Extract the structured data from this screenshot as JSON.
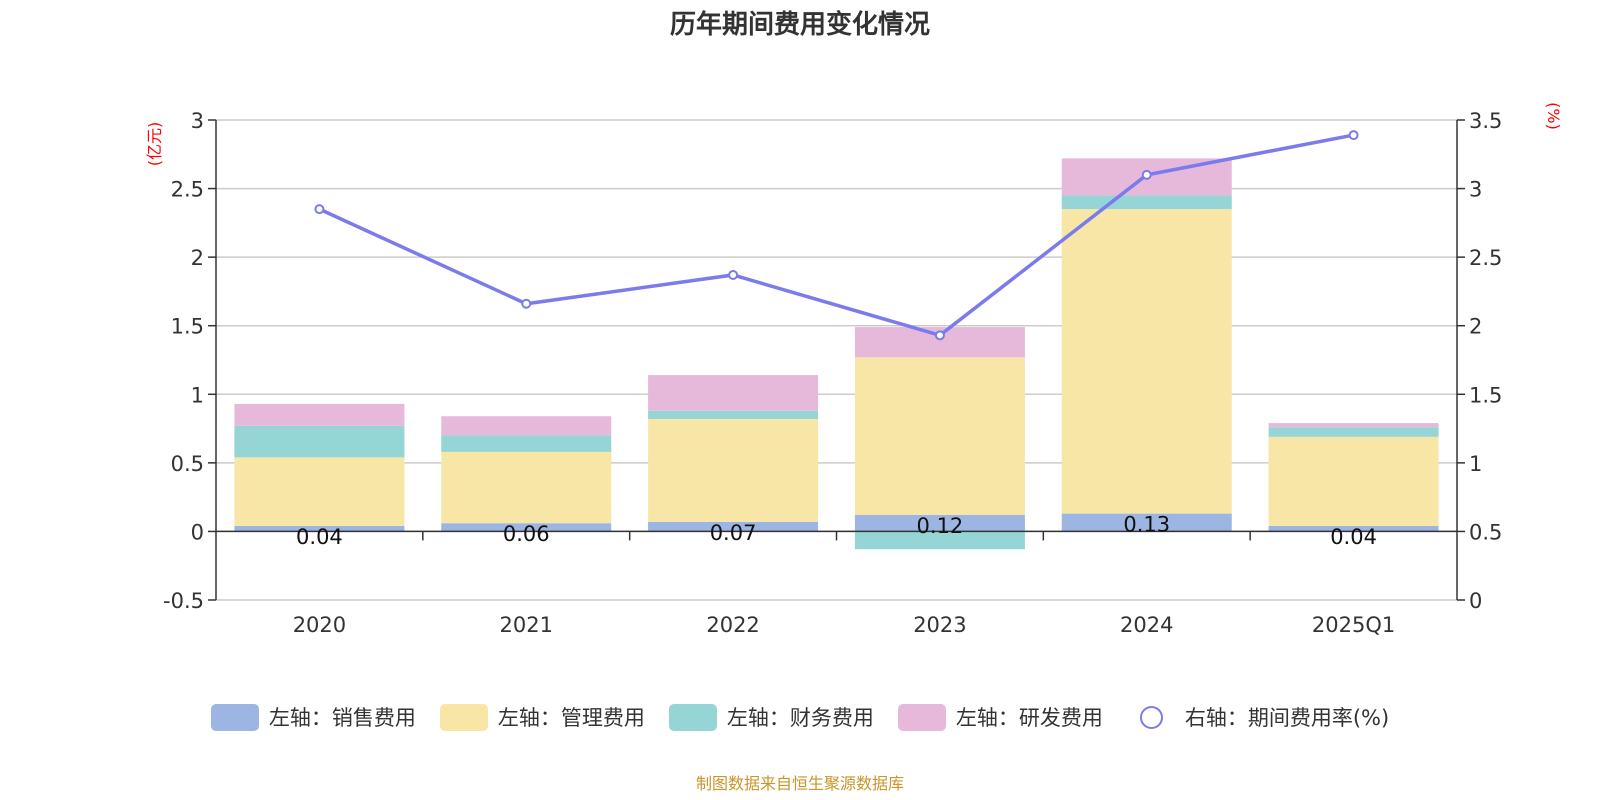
{
  "chart_data": {
    "type": "bar",
    "title": "历年期间费用变化情况",
    "categories": [
      "2020",
      "2021",
      "2022",
      "2023",
      "2024",
      "2025Q1"
    ],
    "y_left_label": "(亿元)",
    "y_right_label": "(%)",
    "y_left_ticks": [
      "3",
      "2.5",
      "2",
      "1.5",
      "1",
      "0.5",
      "0",
      "-0.5"
    ],
    "y_right_ticks": [
      "3.5",
      "3",
      "2.5",
      "2",
      "1.5",
      "1",
      "0.5",
      "0"
    ],
    "ylim_left": [
      -0.5,
      3
    ],
    "ylim_right": [
      0,
      3.5
    ],
    "grid": true,
    "legend_position": "bottom",
    "series": [
      {
        "name": "左轴：销售费用",
        "axis": "left",
        "color": "#9db5e3",
        "values": [
          0.04,
          0.06,
          0.07,
          0.12,
          0.13,
          0.04
        ],
        "labels": [
          "0.04",
          "0.06",
          "0.07",
          "0.12",
          "0.13",
          "0.04"
        ]
      },
      {
        "name": "左轴：管理费用",
        "axis": "left",
        "color": "#f8e6a6",
        "values": [
          0.5,
          0.52,
          0.75,
          1.15,
          2.22,
          0.65
        ]
      },
      {
        "name": "左轴：财务费用",
        "axis": "left",
        "color": "#96d5d6",
        "values": [
          0.23,
          0.12,
          0.06,
          -0.13,
          0.1,
          0.07
        ]
      },
      {
        "name": "左轴：研发费用",
        "axis": "left",
        "color": "#e6b9da",
        "values": [
          0.16,
          0.14,
          0.26,
          0.22,
          0.27,
          0.03
        ]
      },
      {
        "name": "右轴：期间费用率(%)",
        "axis": "right",
        "type": "line",
        "color": "#7b7bec",
        "values": [
          2.85,
          2.16,
          2.37,
          1.93,
          3.1,
          3.39
        ]
      }
    ],
    "source": "制图数据来自恒生聚源数据库"
  }
}
